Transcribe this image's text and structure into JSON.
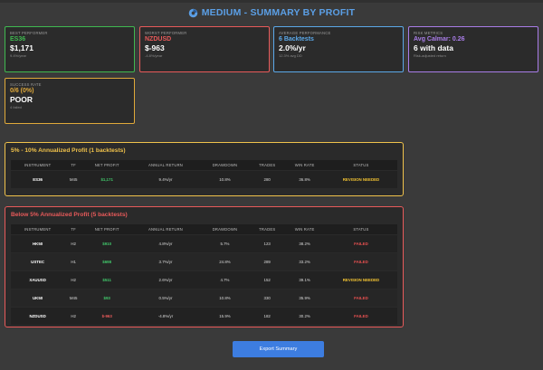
{
  "header": {
    "title": "MEDIUM - SUMMARY BY PROFIT"
  },
  "cards": [
    {
      "label": "BEST PERFORMER",
      "name": "ES36",
      "value": "$1,171",
      "note": "9.4%/year",
      "color": "#3fb950"
    },
    {
      "label": "WORST PERFORMER",
      "name": "NZDUSD",
      "value": "$-963",
      "note": "-4.8%/year",
      "color": "#e85a5a"
    },
    {
      "label": "AVERAGE PERFORMANCE",
      "name": "6 Backtests",
      "value": "2.0%/yr",
      "note": "12.3% avg DD",
      "color": "#5ba8e8"
    },
    {
      "label": "RISK METRICS",
      "name": "Avg Calmar: 0.26",
      "value": "6 with data",
      "note": "Risk-adjusted return",
      "color": "#a97de8"
    },
    {
      "label": "SUCCESS RATE",
      "name": "0/6 (0%)",
      "value": "POOR",
      "note": "4 failed",
      "color": "#e0a93a"
    }
  ],
  "sections": [
    {
      "title": "5% - 10% Annualized Profit (1 backtests)",
      "color": "#f0c24b",
      "rows": [
        {
          "instrument": "ES36",
          "tf": "M45",
          "profit": "$1,171",
          "profit_type": "pos",
          "annual": "9.4%/yr",
          "drawdown": "10.8%",
          "trades": "280",
          "winrate": "36.8%",
          "status": "REVISION NEEDED",
          "status_type": "rev"
        }
      ]
    },
    {
      "title": "Below 5% Annualized Profit (5 backtests)",
      "color": "#e85a5a",
      "rows": [
        {
          "instrument": "HK50",
          "tf": "H2",
          "profit": "$910",
          "profit_type": "pos",
          "annual": "4.8%/yr",
          "drawdown": "5.7%",
          "trades": "123",
          "winrate": "38.2%",
          "status": "FAILED",
          "status_type": "fail"
        },
        {
          "instrument": "USTEC",
          "tf": "H1",
          "profit": "$698",
          "profit_type": "pos",
          "annual": "3.7%/yr",
          "drawdown": "24.8%",
          "trades": "289",
          "winrate": "33.2%",
          "status": "FAILED",
          "status_type": "fail"
        },
        {
          "instrument": "XAUUSD",
          "tf": "H2",
          "profit": "$511",
          "profit_type": "pos",
          "annual": "2.6%/yr",
          "drawdown": "4.7%",
          "trades": "152",
          "winrate": "39.1%",
          "status": "REVISION NEEDED",
          "status_type": "rev"
        },
        {
          "instrument": "UK50",
          "tf": "M45",
          "profit": "$93",
          "profit_type": "pos",
          "annual": "0.5%/yr",
          "drawdown": "10.8%",
          "trades": "330",
          "winrate": "35.9%",
          "status": "FAILED",
          "status_type": "fail"
        },
        {
          "instrument": "NZDUSD",
          "tf": "H2",
          "profit": "$-963",
          "profit_type": "neg",
          "annual": "-4.8%/yr",
          "drawdown": "15.9%",
          "trades": "182",
          "winrate": "30.2%",
          "status": "FAILED",
          "status_type": "fail"
        }
      ]
    }
  ],
  "table_headers": [
    "INSTRUMENT",
    "TF",
    "NET PROFIT",
    "ANNUAL RETURN",
    "DRAWDOWN",
    "TRADES",
    "WIN RATE",
    "STATUS"
  ],
  "export_label": "Export Summary"
}
